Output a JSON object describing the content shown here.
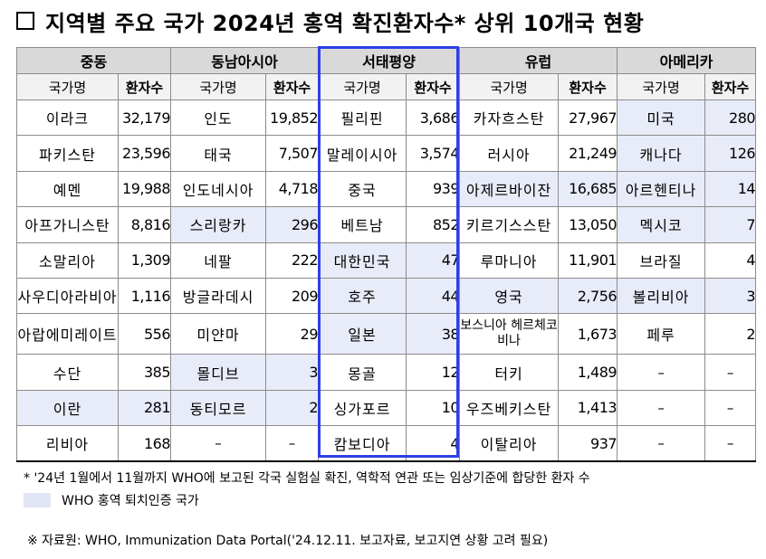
{
  "title": "지역별 주요 국가 2024년 홍역 확진환자수* 상위 10개국 현황",
  "colors": {
    "highlight": "#e8ecf8",
    "frame": "#2e3fe6",
    "header": "#d9d9d9"
  },
  "regions": [
    "중동",
    "동남아시아",
    "서태평양",
    "유럽",
    "아메리카"
  ],
  "column_headers": {
    "name": "국가명",
    "count": "환자수"
  },
  "rows": [
    [
      {
        "n": "이라크",
        "v": "32,179"
      },
      {
        "n": "인도",
        "v": "19,852"
      },
      {
        "n": "필리핀",
        "v": "3,686"
      },
      {
        "n": "카자흐스탄",
        "v": "27,967"
      },
      {
        "n": "미국",
        "v": "280",
        "hl": true
      }
    ],
    [
      {
        "n": "파키스탄",
        "v": "23,596"
      },
      {
        "n": "태국",
        "v": "7,507"
      },
      {
        "n": "말레이시아",
        "v": "3,574"
      },
      {
        "n": "러시아",
        "v": "21,249"
      },
      {
        "n": "캐나다",
        "v": "126",
        "hl": true
      }
    ],
    [
      {
        "n": "예멘",
        "v": "19,988"
      },
      {
        "n": "인도네시아",
        "v": "4,718"
      },
      {
        "n": "중국",
        "v": "939"
      },
      {
        "n": "아제르바이잔",
        "v": "16,685",
        "hl": true
      },
      {
        "n": "아르헨티나",
        "v": "14",
        "hl": true
      }
    ],
    [
      {
        "n": "아프가니스탄",
        "v": "8,816"
      },
      {
        "n": "스리랑카",
        "v": "296",
        "hl": true
      },
      {
        "n": "베트남",
        "v": "852"
      },
      {
        "n": "키르기스스탄",
        "v": "13,050"
      },
      {
        "n": "멕시코",
        "v": "7",
        "hl": true
      }
    ],
    [
      {
        "n": "소말리아",
        "v": "1,309"
      },
      {
        "n": "네팔",
        "v": "222"
      },
      {
        "n": "대한민국",
        "v": "47",
        "hl": true
      },
      {
        "n": "루마니아",
        "v": "11,901"
      },
      {
        "n": "브라질",
        "v": "4"
      }
    ],
    [
      {
        "n": "사우디아라비아",
        "v": "1,116"
      },
      {
        "n": "방글라데시",
        "v": "209"
      },
      {
        "n": "호주",
        "v": "44",
        "hl": true
      },
      {
        "n": "영국",
        "v": "2,756",
        "hl": true
      },
      {
        "n": "볼리비아",
        "v": "3",
        "hl": true
      }
    ],
    [
      {
        "n": "아랍에미레이트",
        "v": "556"
      },
      {
        "n": "미얀마",
        "v": "29"
      },
      {
        "n": "일본",
        "v": "38",
        "hl": true
      },
      {
        "n": "보스니아 헤르체코비나",
        "v": "1,673",
        "two": true
      },
      {
        "n": "페루",
        "v": "2"
      }
    ],
    [
      {
        "n": "수단",
        "v": "385"
      },
      {
        "n": "몰디브",
        "v": "3",
        "hl": true
      },
      {
        "n": "몽골",
        "v": "12"
      },
      {
        "n": "터키",
        "v": "1,489"
      },
      {
        "n": "–",
        "v": "–",
        "dash": true
      }
    ],
    [
      {
        "n": "이란",
        "v": "281",
        "hl": true
      },
      {
        "n": "동티모르",
        "v": "2",
        "hl": true
      },
      {
        "n": "싱가포르",
        "v": "10"
      },
      {
        "n": "우즈베키스탄",
        "v": "1,413"
      },
      {
        "n": "–",
        "v": "–",
        "dash": true
      }
    ],
    [
      {
        "n": "리비아",
        "v": "168"
      },
      {
        "n": "–",
        "v": "–",
        "dash": true
      },
      {
        "n": "캄보디아",
        "v": "4"
      },
      {
        "n": "이탈리아",
        "v": "937"
      },
      {
        "n": "–",
        "v": "–",
        "dash": true
      }
    ]
  ],
  "notes": {
    "footnote": "* '24년 1월에서 11월까지 WHO에 보고된 각국 실험실 확진, 역학적 연관 또는 임상기준에 합당한 환자 수",
    "legend": "WHO 홍역 퇴치인증 국가",
    "source": "※ 자료원: WHO, Immunization Data Portal('24.12.11. 보고자료, 보고지연 상황 고려 필요)"
  }
}
